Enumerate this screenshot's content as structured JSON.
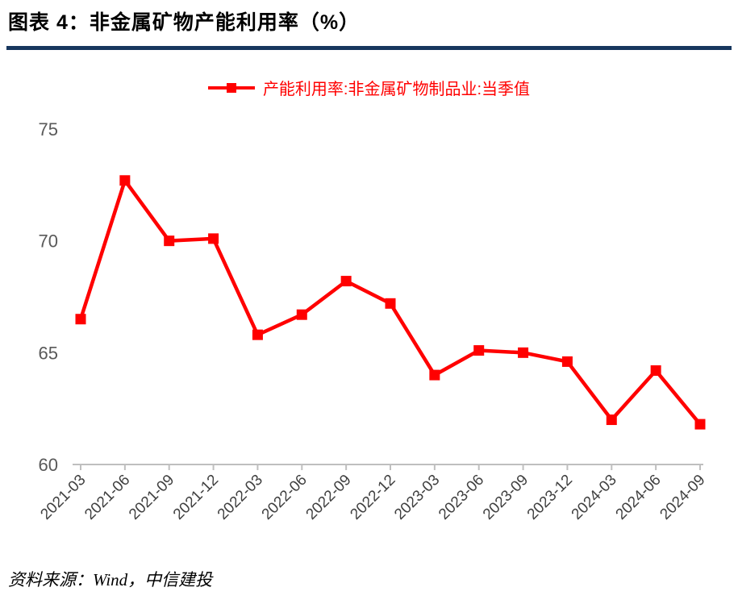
{
  "header": {
    "title": "图表 4：非金属矿物产能利用率（%）"
  },
  "legend": {
    "label": "产能利用率:非金属矿物制品业:当季值"
  },
  "footer": {
    "source": "资料来源：Wind，中信建投"
  },
  "colors": {
    "series": "#FF0000",
    "divider": "#17375E",
    "axis_line": "#BFBFBF",
    "y_tick_label": "#595959",
    "x_tick_label": "#404040"
  },
  "chart_data": {
    "type": "line",
    "title": "图表 4：非金属矿物产能利用率（%）",
    "xlabel": "",
    "ylabel": "",
    "ylim": [
      60,
      75
    ],
    "yticks": [
      60,
      65,
      70,
      75
    ],
    "grid": false,
    "legend_position": "top",
    "categories": [
      "2021-03",
      "2021-06",
      "2021-09",
      "2021-12",
      "2022-03",
      "2022-06",
      "2022-09",
      "2022-12",
      "2023-03",
      "2023-06",
      "2023-09",
      "2023-12",
      "2024-03",
      "2024-06",
      "2024-09"
    ],
    "series": [
      {
        "name": "产能利用率:非金属矿物制品业:当季值",
        "color": "#FF0000",
        "marker": "square",
        "values": [
          66.5,
          72.7,
          70.0,
          70.1,
          65.8,
          66.7,
          68.2,
          67.2,
          64.0,
          65.1,
          65.0,
          64.6,
          62.0,
          64.2,
          61.8
        ]
      }
    ]
  }
}
